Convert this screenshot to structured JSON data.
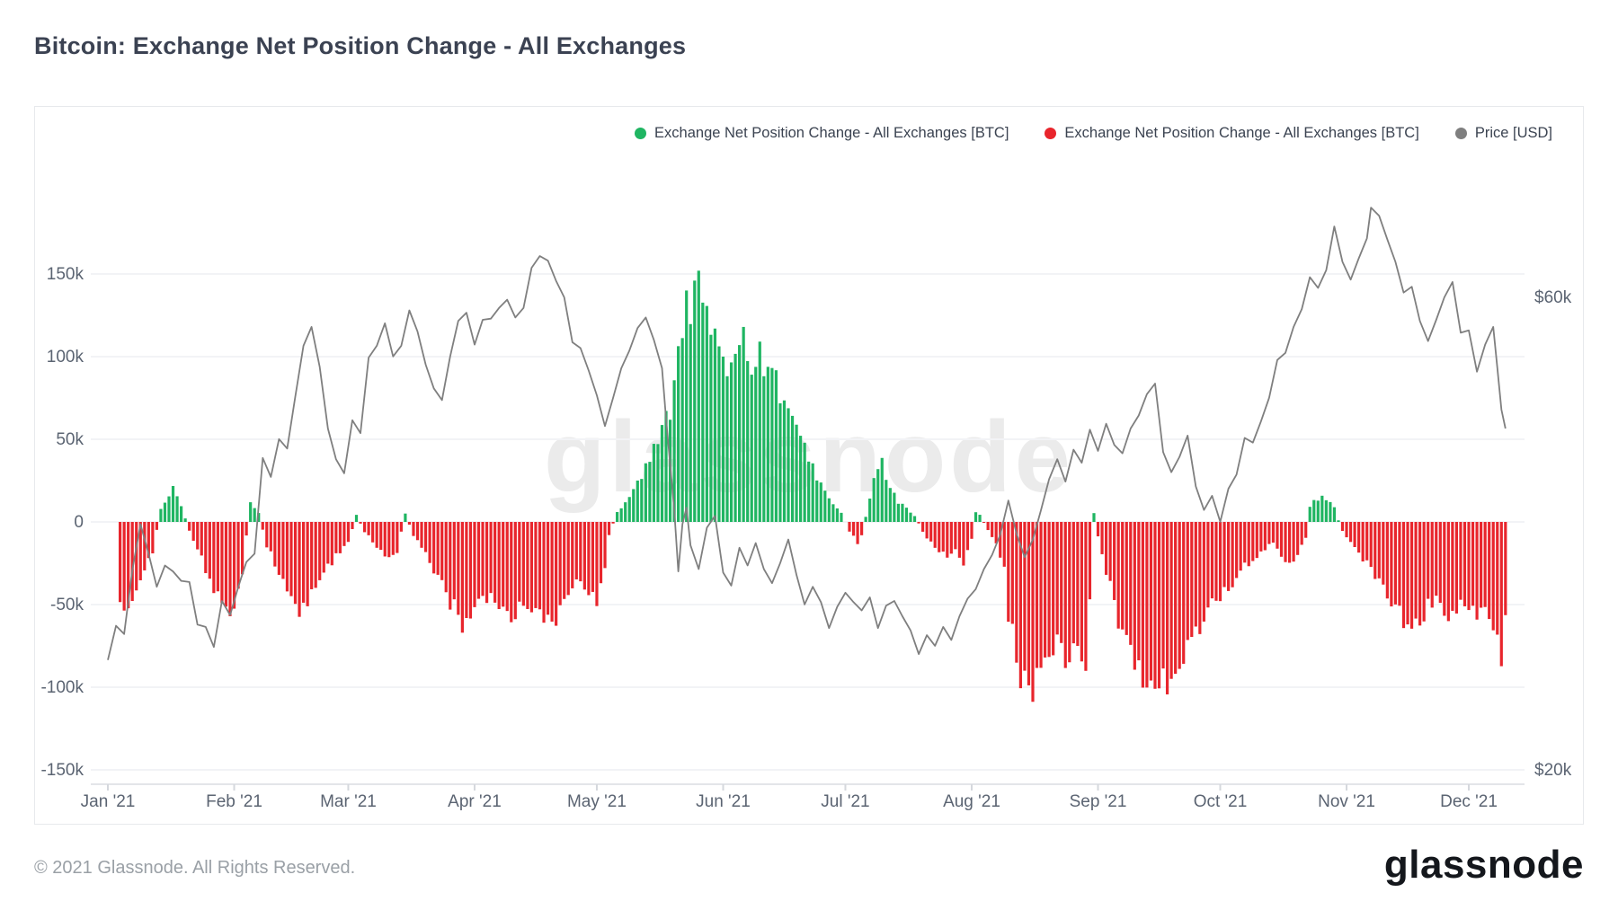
{
  "page": {
    "title": "Bitcoin: Exchange Net Position Change - All Exchanges",
    "watermark": "glassnode",
    "footer_copyright": "© 2021 Glassnode. All Rights Reserved.",
    "footer_brand": "glassnode"
  },
  "legend": {
    "items": [
      {
        "label": "Exchange Net Position Change - All Exchanges [BTC]",
        "color": "#1fb562"
      },
      {
        "label": "Exchange Net Position Change - All Exchanges [BTC]",
        "color": "#e8252c"
      },
      {
        "label": "Price [USD]",
        "color": "#7f7f7f"
      }
    ]
  },
  "chart_data": {
    "type": "combo",
    "title": "Bitcoin: Exchange Net Position Change - All Exchanges",
    "grid": true,
    "legend_position": "top-right",
    "x_axis": {
      "unit": "days since Jan 1 2021",
      "month_labels": [
        "Jan '21",
        "Feb '21",
        "Mar '21",
        "Apr '21",
        "May '21",
        "Jun '21",
        "Jul '21",
        "Aug '21",
        "Sep '21",
        "Oct '21",
        "Nov '21",
        "Dec '21"
      ],
      "month_start_days": [
        0,
        31,
        59,
        90,
        120,
        151,
        181,
        212,
        243,
        273,
        304,
        334
      ]
    },
    "y_left_axis": {
      "title": "Exchange Net Position Change [BTC]",
      "tick_labels": [
        "150k",
        "100k",
        "50k",
        "0",
        "-50k",
        "-100k",
        "-150k"
      ],
      "tick_values_kbtc": [
        150,
        100,
        50,
        0,
        -50,
        -100,
        -150
      ],
      "range_kbtc": [
        -160,
        160
      ]
    },
    "y_right_axis": {
      "title": "Price [USD]",
      "tick_labels": [
        "$60k",
        "$20k"
      ],
      "tick_values_kusd": [
        60,
        20
      ],
      "range_kusd": [
        18,
        72
      ]
    },
    "series": [
      {
        "name": "Exchange Net Position Change - All Exchanges [BTC]",
        "type": "bar",
        "unit": "thousand BTC (30d net position change)",
        "positive_color": "#1fb562",
        "negative_color": "#e8252c",
        "days": [
          3,
          5,
          8,
          11,
          13,
          15,
          16,
          18,
          21,
          24,
          26,
          28,
          31,
          33,
          35,
          37,
          39,
          42,
          45,
          47,
          50,
          53,
          56,
          59,
          61,
          63,
          66,
          69,
          71,
          73,
          75,
          78,
          80,
          82,
          84,
          86,
          88,
          90,
          93,
          96,
          99,
          102,
          105,
          108,
          110,
          112,
          115,
          118,
          120,
          122,
          123,
          125,
          127,
          129,
          131,
          133,
          135,
          136,
          138,
          139,
          140,
          141,
          142,
          143,
          144,
          145,
          146,
          147,
          148,
          150,
          151,
          152,
          153,
          155,
          156,
          157,
          158,
          159,
          160,
          161,
          162,
          163,
          164,
          166,
          168,
          170,
          172,
          174,
          176,
          178,
          180,
          182,
          184,
          185,
          187,
          188,
          189,
          190,
          191,
          192,
          194,
          196,
          198,
          200,
          202,
          204,
          206,
          208,
          210,
          212,
          213,
          214,
          216,
          218,
          220,
          221,
          222,
          223,
          224,
          225,
          227,
          229,
          231,
          233,
          235,
          237,
          239,
          240,
          242,
          243,
          244,
          246,
          248,
          250,
          252,
          254,
          256,
          258,
          260,
          262,
          264,
          266,
          268,
          270,
          272,
          274,
          276,
          278,
          280,
          282,
          284,
          286,
          288,
          290,
          292,
          294,
          295,
          296,
          298,
          300,
          301,
          303,
          305,
          307,
          309,
          311,
          313,
          315,
          317,
          319,
          320,
          322,
          324,
          326,
          328,
          330,
          332,
          334,
          336,
          338,
          340,
          342,
          343
        ],
        "values_kbtc": [
          -46,
          -52,
          -38,
          -18,
          8,
          14,
          22,
          9,
          -12,
          -28,
          -42,
          -50,
          -55,
          -30,
          13,
          6,
          -15,
          -30,
          -45,
          -54,
          -44,
          -32,
          -20,
          -12,
          4,
          -6,
          -14,
          -24,
          -18,
          5,
          -8,
          -18,
          -28,
          -38,
          -48,
          -58,
          -62,
          -52,
          -45,
          -55,
          -58,
          -50,
          -53,
          -58,
          -60,
          -48,
          -35,
          -42,
          -52,
          -30,
          -8,
          6,
          12,
          20,
          28,
          38,
          48,
          55,
          70,
          88,
          105,
          125,
          140,
          132,
          146,
          152,
          138,
          128,
          115,
          95,
          102,
          98,
          105,
          110,
          113,
          108,
          100,
          103,
          98,
          100,
          95,
          90,
          85,
          75,
          60,
          48,
          40,
          28,
          18,
          10,
          6,
          -6,
          -12,
          -8,
          14,
          25,
          32,
          35,
          28,
          20,
          12,
          8,
          4,
          -6,
          -12,
          -18,
          -22,
          -16,
          -25,
          -10,
          6,
          4,
          -5,
          -12,
          -30,
          -55,
          -70,
          -85,
          -95,
          -100,
          -102,
          -92,
          -80,
          -70,
          -82,
          -75,
          -95,
          -101,
          6,
          -8,
          -20,
          -40,
          -58,
          -70,
          -82,
          -92,
          -100,
          -103,
          -97,
          -90,
          -82,
          -73,
          -64,
          -56,
          -48,
          -42,
          -36,
          -30,
          -25,
          -20,
          -16,
          -12,
          -20,
          -26,
          -18,
          -10,
          10,
          13,
          16,
          12,
          8,
          -6,
          -12,
          -18,
          -25,
          -32,
          -40,
          -48,
          -55,
          -62,
          -66,
          -58,
          -50,
          -44,
          -55,
          -60,
          -52,
          -48,
          -58,
          -52,
          -60,
          -80,
          -55
        ]
      },
      {
        "name": "Price [USD]",
        "type": "line",
        "unit": "thousand USD",
        "color": "#7f7f7f",
        "days": [
          0,
          2,
          4,
          6,
          8,
          10,
          12,
          14,
          16,
          18,
          20,
          22,
          24,
          26,
          28,
          30,
          32,
          34,
          36,
          38,
          40,
          42,
          44,
          46,
          48,
          50,
          52,
          54,
          56,
          58,
          60,
          62,
          64,
          66,
          68,
          70,
          72,
          74,
          76,
          78,
          80,
          82,
          84,
          86,
          88,
          90,
          92,
          94,
          96,
          98,
          100,
          102,
          104,
          106,
          108,
          110,
          112,
          114,
          116,
          118,
          120,
          122,
          124,
          126,
          128,
          130,
          132,
          134,
          136,
          137,
          139,
          140,
          141,
          142,
          143,
          145,
          147,
          149,
          151,
          153,
          155,
          157,
          159,
          161,
          163,
          165,
          167,
          169,
          171,
          173,
          175,
          177,
          179,
          181,
          183,
          185,
          187,
          189,
          191,
          193,
          195,
          197,
          199,
          201,
          203,
          205,
          207,
          209,
          211,
          213,
          215,
          217,
          219,
          221,
          223,
          225,
          227,
          229,
          231,
          233,
          235,
          237,
          239,
          241,
          243,
          245,
          247,
          249,
          251,
          253,
          255,
          257,
          259,
          261,
          263,
          265,
          267,
          269,
          271,
          273,
          275,
          277,
          279,
          281,
          283,
          285,
          287,
          289,
          291,
          293,
          295,
          297,
          299,
          301,
          303,
          305,
          307,
          309,
          310,
          312,
          314,
          316,
          318,
          320,
          322,
          324,
          326,
          328,
          330,
          332,
          334,
          336,
          338,
          340,
          341,
          342,
          343
        ],
        "values_kusd": [
          29.3,
          32.2,
          31.5,
          36.9,
          40.8,
          38.3,
          35.5,
          37.3,
          36.8,
          36.0,
          35.9,
          32.3,
          32.1,
          30.4,
          34.3,
          33.1,
          35.5,
          37.6,
          38.3,
          46.4,
          44.8,
          48.0,
          47.2,
          51.6,
          55.9,
          57.5,
          54.1,
          48.9,
          46.3,
          45.1,
          49.6,
          48.5,
          54.9,
          55.9,
          57.8,
          55.0,
          55.9,
          58.9,
          57.1,
          54.3,
          52.3,
          51.3,
          55.0,
          58.0,
          58.7,
          56.0,
          58.1,
          58.2,
          59.1,
          59.8,
          58.3,
          59.1,
          62.5,
          63.5,
          63.1,
          61.4,
          60.0,
          56.2,
          55.7,
          53.8,
          51.7,
          49.1,
          51.5,
          54.0,
          55.5,
          57.4,
          58.3,
          56.4,
          54.0,
          49.7,
          42.0,
          36.8,
          40.8,
          42.2,
          39.0,
          37.0,
          40.5,
          41.5,
          36.7,
          35.6,
          38.8,
          37.3,
          39.2,
          37.0,
          35.8,
          37.5,
          39.5,
          36.5,
          34.0,
          35.5,
          34.2,
          32.0,
          33.8,
          35.0,
          34.2,
          33.5,
          34.6,
          32.0,
          33.9,
          34.3,
          33.0,
          31.8,
          29.8,
          31.4,
          30.5,
          32.1,
          31.0,
          33.0,
          34.5,
          35.3,
          37.0,
          38.2,
          39.9,
          42.8,
          40.0,
          38.0,
          39.5,
          42.0,
          44.6,
          46.3,
          44.4,
          47.1,
          46.0,
          48.8,
          47.0,
          49.3,
          47.5,
          46.8,
          48.9,
          50.0,
          51.8,
          52.7,
          46.9,
          45.2,
          46.5,
          48.3,
          44.0,
          42.0,
          43.2,
          41.0,
          43.8,
          45.0,
          48.1,
          47.7,
          49.5,
          51.5,
          54.7,
          55.3,
          57.5,
          59.0,
          61.7,
          60.8,
          62.3,
          66.0,
          63.0,
          61.5,
          63.3,
          65.0,
          67.6,
          66.9,
          64.9,
          63.0,
          60.4,
          60.9,
          58.0,
          56.3,
          58.1,
          60.0,
          61.3,
          57.0,
          57.2,
          53.7,
          56.0,
          57.5,
          54.0,
          50.5,
          48.9
        ]
      }
    ]
  },
  "style": {
    "grid_color": "#f2f3f6",
    "axis_line_color": "#e3e5e9",
    "tick_mark_color": "#d5d8dd",
    "axis_label_color": "#5b6472",
    "bar_positive": "#1fb562",
    "bar_negative": "#e8252c",
    "price_line": "#7f7f7f"
  }
}
